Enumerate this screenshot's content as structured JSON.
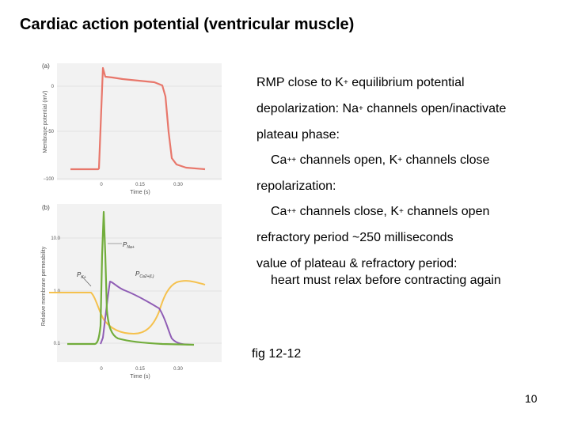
{
  "slide": {
    "title": "Cardiac action potential (ventricular muscle)",
    "page_number": "10"
  },
  "figure": {
    "panel_a": {
      "label": "(a)",
      "ylabel": "Membrane potential (mV)",
      "yticks": [
        "0",
        "−50",
        "−100"
      ],
      "xticks": [
        "0",
        "0.15",
        "0.30"
      ],
      "xlabel": "Time (s)",
      "color": "#e8776b"
    },
    "panel_b": {
      "label": "(b)",
      "ylabel": "Relative membrane permeability",
      "yticks": [
        "10.0",
        "1.0",
        "0.1"
      ],
      "xticks": [
        "0",
        "0.15",
        "0.30"
      ],
      "xlabel": "Time (s)",
      "series": [
        {
          "name": "P_Na+",
          "color": "#72ad3c"
        },
        {
          "name": "P_K+",
          "color": "#f5c14e"
        },
        {
          "name": "P_Ca2+",
          "color": "#8f5db5"
        }
      ],
      "label_na_main": "P",
      "label_na_sub": "Na+",
      "label_k_main": "P",
      "label_k_sub": "K+",
      "label_ca_main": "P",
      "label_ca_sub": "Ca2+(L)"
    },
    "caption": "fig 12-12"
  },
  "notes": {
    "rmp": "RMP close to K",
    "rmp_sup": "+",
    "rmp_rest": " equilibrium potential",
    "depol": "depolarization: Na",
    "depol_sup": "+",
    "depol_rest": " channels open/inactivate",
    "plateau": "plateau phase:",
    "plateau_detail_a": "Ca",
    "plateau_detail_sup1": "++",
    "plateau_detail_b": " channels open, K",
    "plateau_detail_sup2": "+",
    "plateau_detail_c": " channels close",
    "repol": "repolarization:",
    "repol_detail_a": "Ca",
    "repol_detail_sup1": "++",
    "repol_detail_b": " channels close, K",
    "repol_detail_sup2": "+",
    "repol_detail_c": " channels open",
    "refractory": "refractory period ~250 milliseconds",
    "value": "value of plateau & refractory period:",
    "value_detail": "heart must relax before contracting again"
  }
}
